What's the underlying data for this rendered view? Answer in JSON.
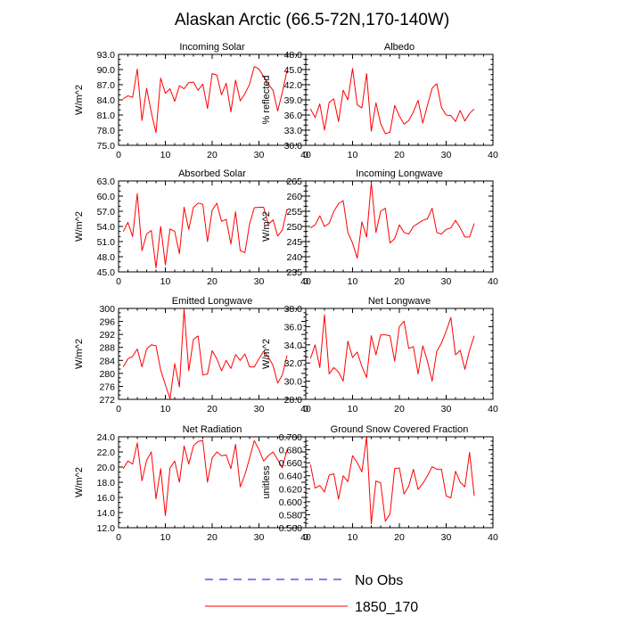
{
  "title": "Alaskan Arctic (66.5-72N,170-140W)",
  "legend": [
    {
      "label": "No Obs",
      "color": "#0000ff",
      "style": "dashed"
    },
    {
      "label": "1850_170",
      "color": "#ff0000",
      "style": "solid"
    }
  ],
  "chart_data": [
    {
      "type": "line",
      "title": "Incoming Solar",
      "ylabel": "W/m^2",
      "xlim": [
        0,
        40
      ],
      "xticks": [
        "0",
        "10",
        "20",
        "30",
        "40"
      ],
      "ylim": [
        75,
        93
      ],
      "yticks": [
        "75.0",
        "78.0",
        "81.0",
        "84.0",
        "87.0",
        "90.0",
        "93.0"
      ],
      "series": [
        {
          "name": "1850_170",
          "color": "#ff0000",
          "x": [
            1,
            2,
            3,
            4,
            5,
            6,
            7,
            8,
            9,
            10,
            11,
            12,
            13,
            14,
            15,
            16,
            17,
            18,
            19,
            20,
            21,
            22,
            23,
            24,
            25,
            26,
            27,
            28,
            29,
            30,
            31,
            32,
            33,
            34,
            35,
            36
          ],
          "values": [
            84.2,
            84.8,
            84.5,
            90.1,
            79.9,
            86.3,
            81.5,
            77.5,
            88.3,
            85.3,
            86.2,
            83.7,
            86.8,
            86.2,
            87.4,
            87.5,
            85.9,
            87.1,
            82.3,
            89.2,
            88.9,
            85.0,
            87.3,
            81.6,
            87.9,
            83.8,
            85.2,
            87.1,
            90.6,
            90.1,
            88.6,
            87.1,
            85.9,
            81.8,
            85.5,
            89.8
          ]
        }
      ]
    },
    {
      "type": "line",
      "title": "Albedo",
      "ylabel": "% reflected",
      "xlim": [
        0,
        40
      ],
      "xticks": [
        "0",
        "10",
        "20",
        "30",
        "40"
      ],
      "ylim": [
        30,
        48
      ],
      "yticks": [
        "30.0",
        "33.0",
        "36.0",
        "39.0",
        "42.0",
        "45.0",
        "48.0"
      ],
      "series": [
        {
          "name": "1850_170",
          "color": "#ff0000",
          "x": [
            1,
            2,
            3,
            4,
            5,
            6,
            7,
            8,
            9,
            10,
            11,
            12,
            13,
            14,
            15,
            16,
            17,
            18,
            19,
            20,
            21,
            22,
            23,
            24,
            25,
            26,
            27,
            28,
            29,
            30,
            31,
            32,
            33,
            34,
            35,
            36
          ],
          "values": [
            37.2,
            35.5,
            38.2,
            33.0,
            38.5,
            39.2,
            34.7,
            40.9,
            39.0,
            45.2,
            38.0,
            37.4,
            44.2,
            32.8,
            38.4,
            34.3,
            32.3,
            32.6,
            37.9,
            35.8,
            34.2,
            34.9,
            36.6,
            38.9,
            34.4,
            37.9,
            41.3,
            42.2,
            37.5,
            36.0,
            35.9,
            34.7,
            36.9,
            34.8,
            36.3,
            37.2
          ]
        }
      ]
    },
    {
      "type": "line",
      "title": "Absorbed Solar",
      "ylabel": "W/m^2",
      "xlim": [
        0,
        40
      ],
      "xticks": [
        "0",
        "10",
        "20",
        "30",
        "40"
      ],
      "ylim": [
        45,
        63
      ],
      "yticks": [
        "45.0",
        "48.0",
        "51.0",
        "54.0",
        "57.0",
        "60.0",
        "63.0"
      ],
      "series": [
        {
          "name": "1850_170",
          "color": "#ff0000",
          "x": [
            1,
            2,
            3,
            4,
            5,
            6,
            7,
            8,
            9,
            10,
            11,
            12,
            13,
            14,
            15,
            16,
            17,
            18,
            19,
            20,
            21,
            22,
            23,
            24,
            25,
            26,
            27,
            28,
            29,
            30,
            31,
            32,
            33,
            34,
            35,
            36
          ],
          "values": [
            53.0,
            54.8,
            52.0,
            60.5,
            49.2,
            52.5,
            53.2,
            45.8,
            54.0,
            46.4,
            53.5,
            53.0,
            48.6,
            57.8,
            53.4,
            57.8,
            58.6,
            58.4,
            51.0,
            57.2,
            58.6,
            55.0,
            55.4,
            50.5,
            56.9,
            49.2,
            48.8,
            54.5,
            57.7,
            57.8,
            57.8,
            54.4,
            55.3,
            52.1,
            53.3,
            57.4
          ]
        }
      ]
    },
    {
      "type": "line",
      "title": "Incoming Longwave",
      "ylabel": "W/m^2",
      "xlim": [
        0,
        40
      ],
      "xticks": [
        "0",
        "10",
        "20",
        "30",
        "40"
      ],
      "ylim": [
        235,
        265
      ],
      "yticks": [
        "235",
        "240",
        "245",
        "250",
        "255",
        "260",
        "265"
      ],
      "series": [
        {
          "name": "1850_170",
          "color": "#ff0000",
          "x": [
            1,
            2,
            3,
            4,
            5,
            6,
            7,
            8,
            9,
            10,
            11,
            12,
            13,
            14,
            15,
            16,
            17,
            18,
            19,
            20,
            21,
            22,
            23,
            24,
            25,
            26,
            27,
            28,
            29,
            30,
            31,
            32,
            33,
            34,
            35,
            36
          ],
          "values": [
            249.5,
            250.5,
            253.5,
            250.0,
            251.0,
            255.0,
            257.5,
            258.5,
            248.0,
            244.5,
            239.5,
            251.5,
            246.5,
            264.5,
            248.0,
            255.0,
            256.0,
            244.5,
            246.0,
            250.5,
            248.0,
            247.5,
            250.0,
            251.0,
            252.0,
            252.5,
            256.0,
            248.0,
            247.5,
            249.0,
            249.5,
            252.0,
            249.5,
            246.5,
            246.5,
            251.0
          ]
        }
      ]
    },
    {
      "type": "line",
      "title": "Emitted Longwave",
      "ylabel": "W/m^2",
      "xlim": [
        0,
        40
      ],
      "xticks": [
        "0",
        "10",
        "20",
        "30",
        "40"
      ],
      "ylim": [
        272,
        300
      ],
      "yticks": [
        "272",
        "276",
        "280",
        "284",
        "288",
        "292",
        "296",
        "300"
      ],
      "series": [
        {
          "name": "1850_170",
          "color": "#ff0000",
          "x": [
            1,
            2,
            3,
            4,
            5,
            6,
            7,
            8,
            9,
            10,
            11,
            12,
            13,
            14,
            15,
            16,
            17,
            18,
            19,
            20,
            21,
            22,
            23,
            24,
            25,
            26,
            27,
            28,
            29,
            30,
            31,
            32,
            33,
            34,
            35,
            36
          ],
          "values": [
            282.0,
            284.5,
            285.2,
            287.5,
            282.0,
            287.5,
            288.8,
            288.5,
            281.0,
            276.5,
            272.2,
            283.0,
            275.8,
            299.8,
            280.8,
            290.5,
            291.5,
            279.5,
            279.8,
            287.0,
            284.5,
            280.8,
            284.0,
            281.5,
            285.8,
            284.0,
            286.0,
            282.0,
            282.0,
            284.5,
            286.8,
            285.0,
            282.5,
            277.0,
            279.5,
            285.5
          ]
        }
      ]
    },
    {
      "type": "line",
      "title": "Net Longwave",
      "ylabel": "W/m^2",
      "xlim": [
        0,
        40
      ],
      "xticks": [
        "0",
        "10",
        "20",
        "30",
        "40"
      ],
      "ylim": [
        28,
        38
      ],
      "yticks": [
        "28.0",
        "30.0",
        "32.0",
        "34.0",
        "36.0",
        "38.0"
      ],
      "series": [
        {
          "name": "1850_170",
          "color": "#ff0000",
          "x": [
            1,
            2,
            3,
            4,
            5,
            6,
            7,
            8,
            9,
            10,
            11,
            12,
            13,
            14,
            15,
            16,
            17,
            18,
            19,
            20,
            21,
            22,
            23,
            24,
            25,
            26,
            27,
            28,
            29,
            30,
            31,
            32,
            33,
            34,
            35,
            36
          ],
          "values": [
            32.5,
            34.0,
            31.5,
            37.3,
            30.8,
            31.5,
            31.0,
            30.0,
            34.4,
            32.6,
            33.2,
            31.6,
            30.4,
            35.0,
            32.9,
            35.1,
            35.1,
            35.0,
            32.2,
            36.0,
            36.6,
            33.6,
            33.8,
            30.8,
            33.9,
            32.2,
            30.0,
            33.3,
            34.2,
            35.5,
            37.0,
            32.9,
            33.4,
            31.3,
            33.4,
            35.0
          ]
        }
      ]
    },
    {
      "type": "line",
      "title": "Net Radiation",
      "ylabel": "W/m^2",
      "xlim": [
        0,
        40
      ],
      "xticks": [
        "0",
        "10",
        "20",
        "30",
        "40"
      ],
      "ylim": [
        12,
        24
      ],
      "yticks": [
        "12.0",
        "14.0",
        "16.0",
        "18.0",
        "20.0",
        "22.0",
        "24.0"
      ],
      "series": [
        {
          "name": "1850_170",
          "color": "#ff0000",
          "x": [
            1,
            2,
            3,
            4,
            5,
            6,
            7,
            8,
            9,
            10,
            11,
            12,
            13,
            14,
            15,
            16,
            17,
            18,
            19,
            20,
            21,
            22,
            23,
            24,
            25,
            26,
            27,
            28,
            29,
            30,
            31,
            32,
            33,
            34,
            35,
            36
          ],
          "values": [
            19.8,
            20.8,
            20.4,
            23.2,
            18.2,
            20.9,
            22.0,
            15.8,
            19.8,
            13.6,
            19.9,
            20.8,
            18.0,
            22.8,
            20.4,
            22.8,
            23.4,
            23.5,
            18.0,
            21.2,
            22.0,
            21.5,
            21.6,
            19.8,
            23.0,
            17.4,
            19.0,
            21.2,
            23.5,
            22.3,
            20.8,
            21.5,
            22.0,
            21.0,
            19.9,
            22.3
          ]
        }
      ]
    },
    {
      "type": "line",
      "title": "Ground Snow Covered Fraction",
      "ylabel": "unitless",
      "xlim": [
        0,
        40
      ],
      "xticks": [
        "0",
        "10",
        "20",
        "30",
        "40"
      ],
      "ylim": [
        0.56,
        0.7
      ],
      "yticks": [
        "0.560",
        "0.580",
        "0.600",
        "0.620",
        "0.640",
        "0.660",
        "0.680",
        "0.700"
      ],
      "series": [
        {
          "name": "1850_170",
          "color": "#ff0000",
          "x": [
            1,
            2,
            3,
            4,
            5,
            6,
            7,
            8,
            9,
            10,
            11,
            12,
            13,
            14,
            15,
            16,
            17,
            18,
            19,
            20,
            21,
            22,
            23,
            24,
            25,
            26,
            27,
            28,
            29,
            30,
            31,
            32,
            33,
            34,
            35,
            36
          ],
          "values": [
            0.657,
            0.621,
            0.625,
            0.615,
            0.641,
            0.643,
            0.604,
            0.64,
            0.631,
            0.671,
            0.66,
            0.646,
            0.7,
            0.566,
            0.632,
            0.629,
            0.57,
            0.581,
            0.651,
            0.652,
            0.612,
            0.624,
            0.65,
            0.619,
            0.628,
            0.64,
            0.654,
            0.65,
            0.65,
            0.609,
            0.606,
            0.647,
            0.63,
            0.623,
            0.676,
            0.609
          ]
        }
      ]
    }
  ]
}
